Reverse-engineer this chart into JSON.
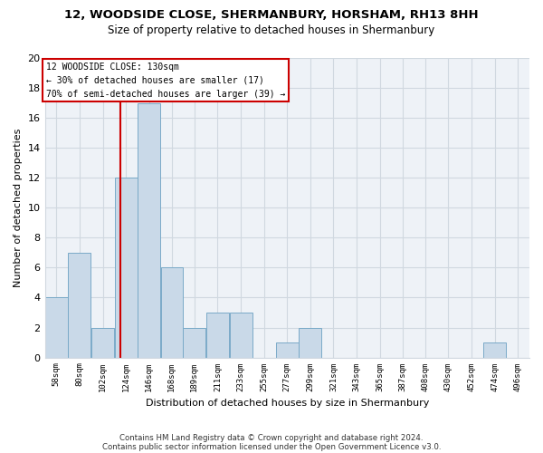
{
  "title1": "12, WOODSIDE CLOSE, SHERMANBURY, HORSHAM, RH13 8HH",
  "title2": "Size of property relative to detached houses in Shermanbury",
  "xlabel": "Distribution of detached houses by size in Shermanbury",
  "ylabel": "Number of detached properties",
  "footnote1": "Contains HM Land Registry data © Crown copyright and database right 2024.",
  "footnote2": "Contains public sector information licensed under the Open Government Licence v3.0.",
  "bar_left_edges": [
    58,
    80,
    102,
    124,
    146,
    168,
    189,
    211,
    233,
    255,
    277,
    299,
    321,
    343,
    365,
    387,
    408,
    430,
    452,
    474,
    496
  ],
  "bar_widths": [
    22,
    22,
    22,
    22,
    22,
    21,
    22,
    22,
    22,
    22,
    22,
    22,
    22,
    22,
    22,
    21,
    22,
    22,
    22,
    22,
    22
  ],
  "bar_heights": [
    4,
    7,
    2,
    12,
    17,
    6,
    2,
    3,
    3,
    0,
    1,
    2,
    0,
    0,
    0,
    0,
    0,
    0,
    0,
    1,
    0
  ],
  "tick_labels": [
    "58sqm",
    "80sqm",
    "102sqm",
    "124sqm",
    "146sqm",
    "168sqm",
    "189sqm",
    "211sqm",
    "233sqm",
    "255sqm",
    "277sqm",
    "299sqm",
    "321sqm",
    "343sqm",
    "365sqm",
    "387sqm",
    "408sqm",
    "430sqm",
    "452sqm",
    "474sqm",
    "496sqm"
  ],
  "bar_color": "#c9d9e8",
  "bar_edge_color": "#7aaac8",
  "grid_color": "#d0d8e0",
  "vline_x": 130,
  "vline_color": "#cc0000",
  "annotation_text": "12 WOODSIDE CLOSE: 130sqm\n← 30% of detached houses are smaller (17)\n70% of semi-detached houses are larger (39) →",
  "annotation_box_color": "#ffffff",
  "annotation_box_edge_color": "#cc0000",
  "ylim": [
    0,
    20
  ],
  "yticks": [
    0,
    2,
    4,
    6,
    8,
    10,
    12,
    14,
    16,
    18,
    20
  ],
  "background_color": "#ffffff",
  "ax_background_color": "#eef2f7"
}
